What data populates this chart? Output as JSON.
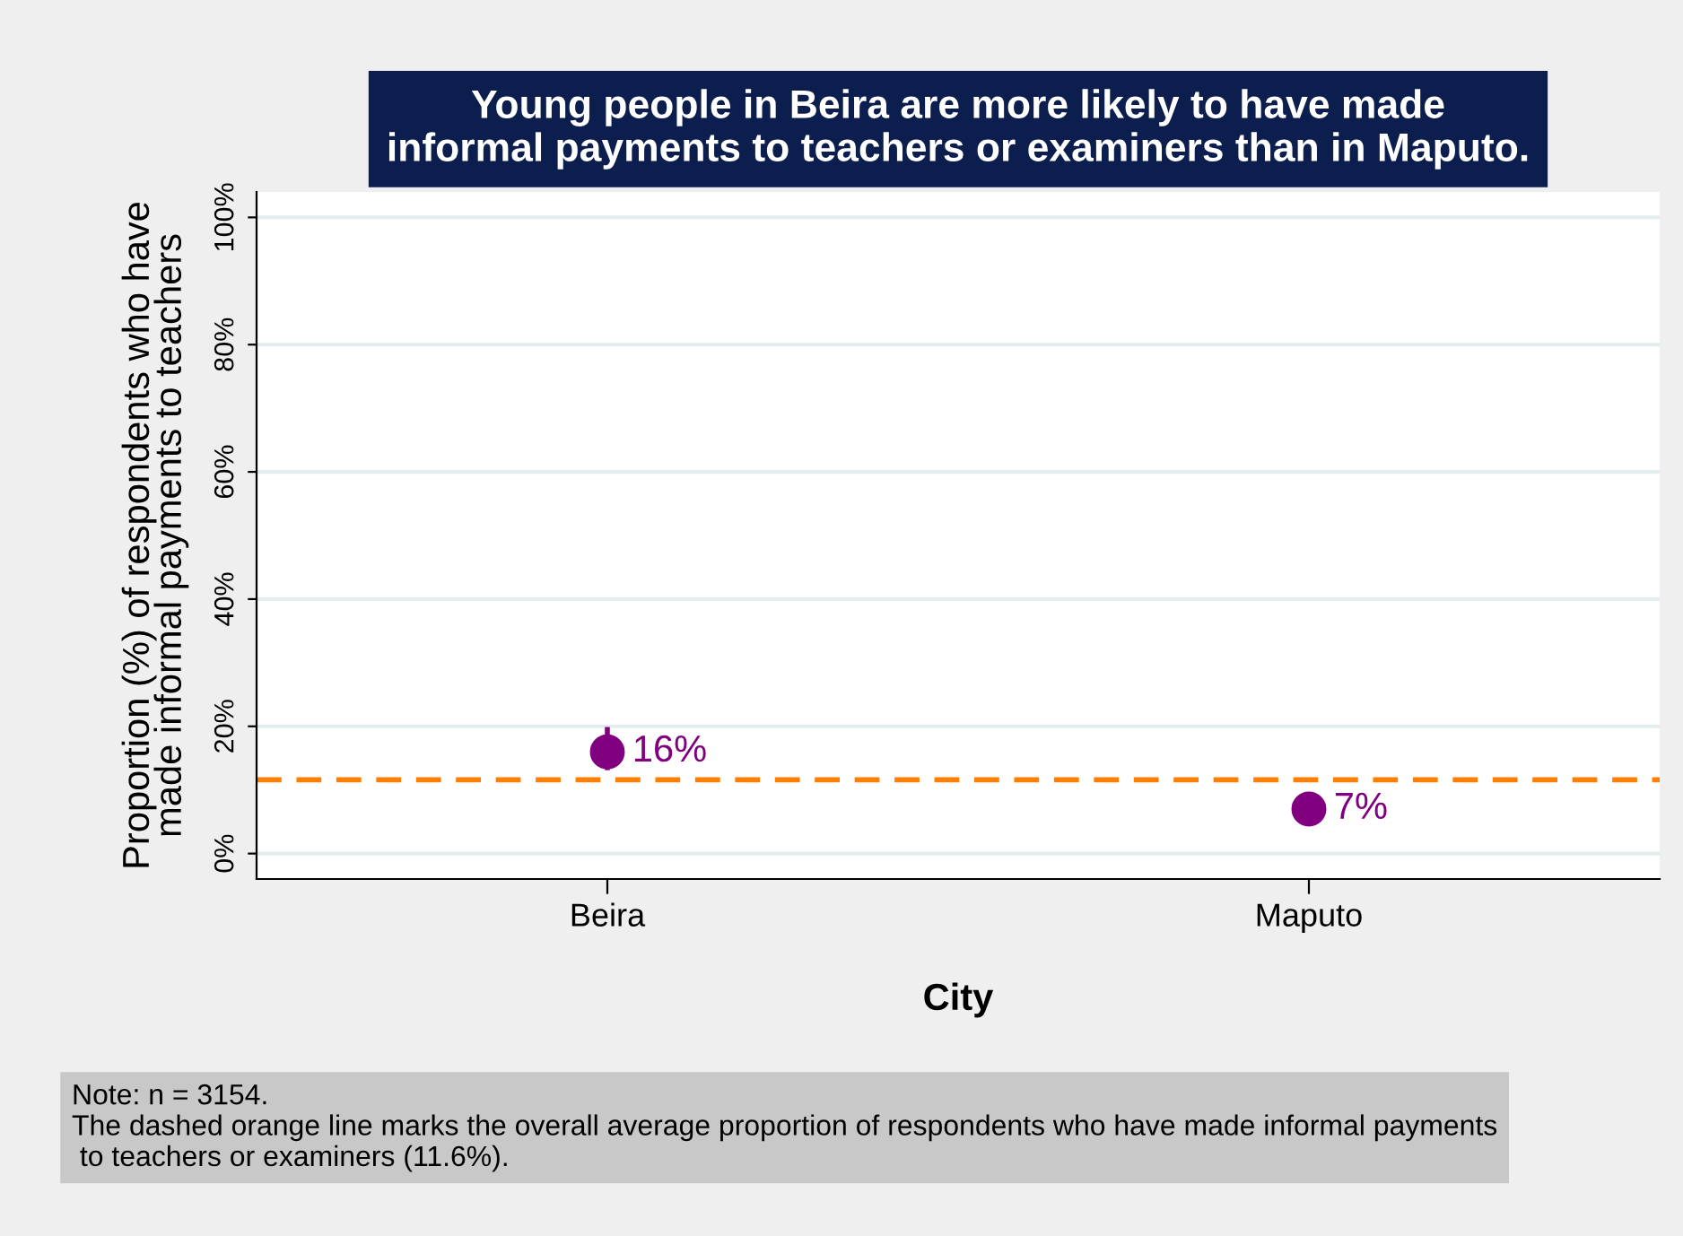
{
  "chart_data": {
    "type": "scatter",
    "title": "Young people in Beira are more likely to have made\ninformal payments to teachers or examiners than in Maputo.",
    "xlabel": "City",
    "ylabel": "Proportion (%) of respondents who have\nmade informal payments to teachers",
    "categories": [
      "Beira",
      "Maputo"
    ],
    "series": [
      {
        "color": "#800080",
        "values": [
          16,
          7
        ],
        "errors": [
          [
            13.5,
            19.5
          ],
          null
        ],
        "value_labels": [
          "16%",
          "7%"
        ]
      }
    ],
    "ylim": [
      -4,
      104
    ],
    "yticks": [
      {
        "value": 0,
        "label": "0%"
      },
      {
        "value": 20,
        "label": "20%"
      },
      {
        "value": 40,
        "label": "40%"
      },
      {
        "value": 60,
        "label": "60%"
      },
      {
        "value": 80,
        "label": "80%"
      },
      {
        "value": 100,
        "label": "100%"
      }
    ],
    "ref_lines": [
      {
        "axis": "y",
        "value": 11.6,
        "color": "#ff8000",
        "line_style": "dashed"
      }
    ],
    "grid": "y",
    "marker": "circle",
    "annotations": [
      "Note: n = 3154.\nThe dashed orange line marks the overall average proportion of respondents who have made informal payments\n to teachers or examiners (11.6%)."
    ]
  }
}
